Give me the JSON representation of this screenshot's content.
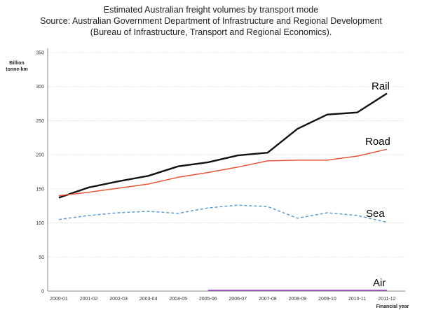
{
  "chart_data": {
    "type": "line",
    "title": "Estimated Australian freight volumes by transport mode",
    "subtitle_lines": [
      "Source: Australian Government Department of Infrastructure and Regional Development",
      "(Bureau of Infrastructure, Transport and Regional Economics)."
    ],
    "ylabel_lines": [
      "Billion",
      "tonne-km"
    ],
    "xlabel_lines": [
      "Financial year"
    ],
    "ylim": [
      0,
      350
    ],
    "yticks": [
      0,
      50,
      100,
      150,
      200,
      250,
      300,
      350
    ],
    "categories": [
      "2000-01",
      "2001-02",
      "2002-03",
      "2003-04",
      "2004-05",
      "2005-06",
      "2006-07",
      "2007-08",
      "2008-09",
      "2009-10",
      "2010-11",
      "2011-12"
    ],
    "grid": true,
    "legend": "inline labels at line ends",
    "series": [
      {
        "name": "Rail",
        "color": "#111111",
        "dash": "solid",
        "values": [
          137,
          152,
          161,
          169,
          183,
          189,
          199,
          203,
          238,
          259,
          262,
          290
        ]
      },
      {
        "name": "Road",
        "color": "#e8553a",
        "dash": "solid",
        "values": [
          140,
          145,
          151,
          157,
          167,
          174,
          182,
          191,
          192,
          192,
          198,
          208
        ]
      },
      {
        "name": "Sea",
        "color": "#5b9bd5",
        "dash": "dashed",
        "values": [
          105,
          111,
          115,
          117,
          114,
          122,
          126,
          124,
          107,
          115,
          111,
          101
        ]
      },
      {
        "name": "Air",
        "color": "#9b59b6",
        "dash": "solid",
        "values": [
          null,
          null,
          null,
          null,
          null,
          1,
          1,
          1,
          1,
          1,
          1,
          1
        ]
      }
    ]
  }
}
